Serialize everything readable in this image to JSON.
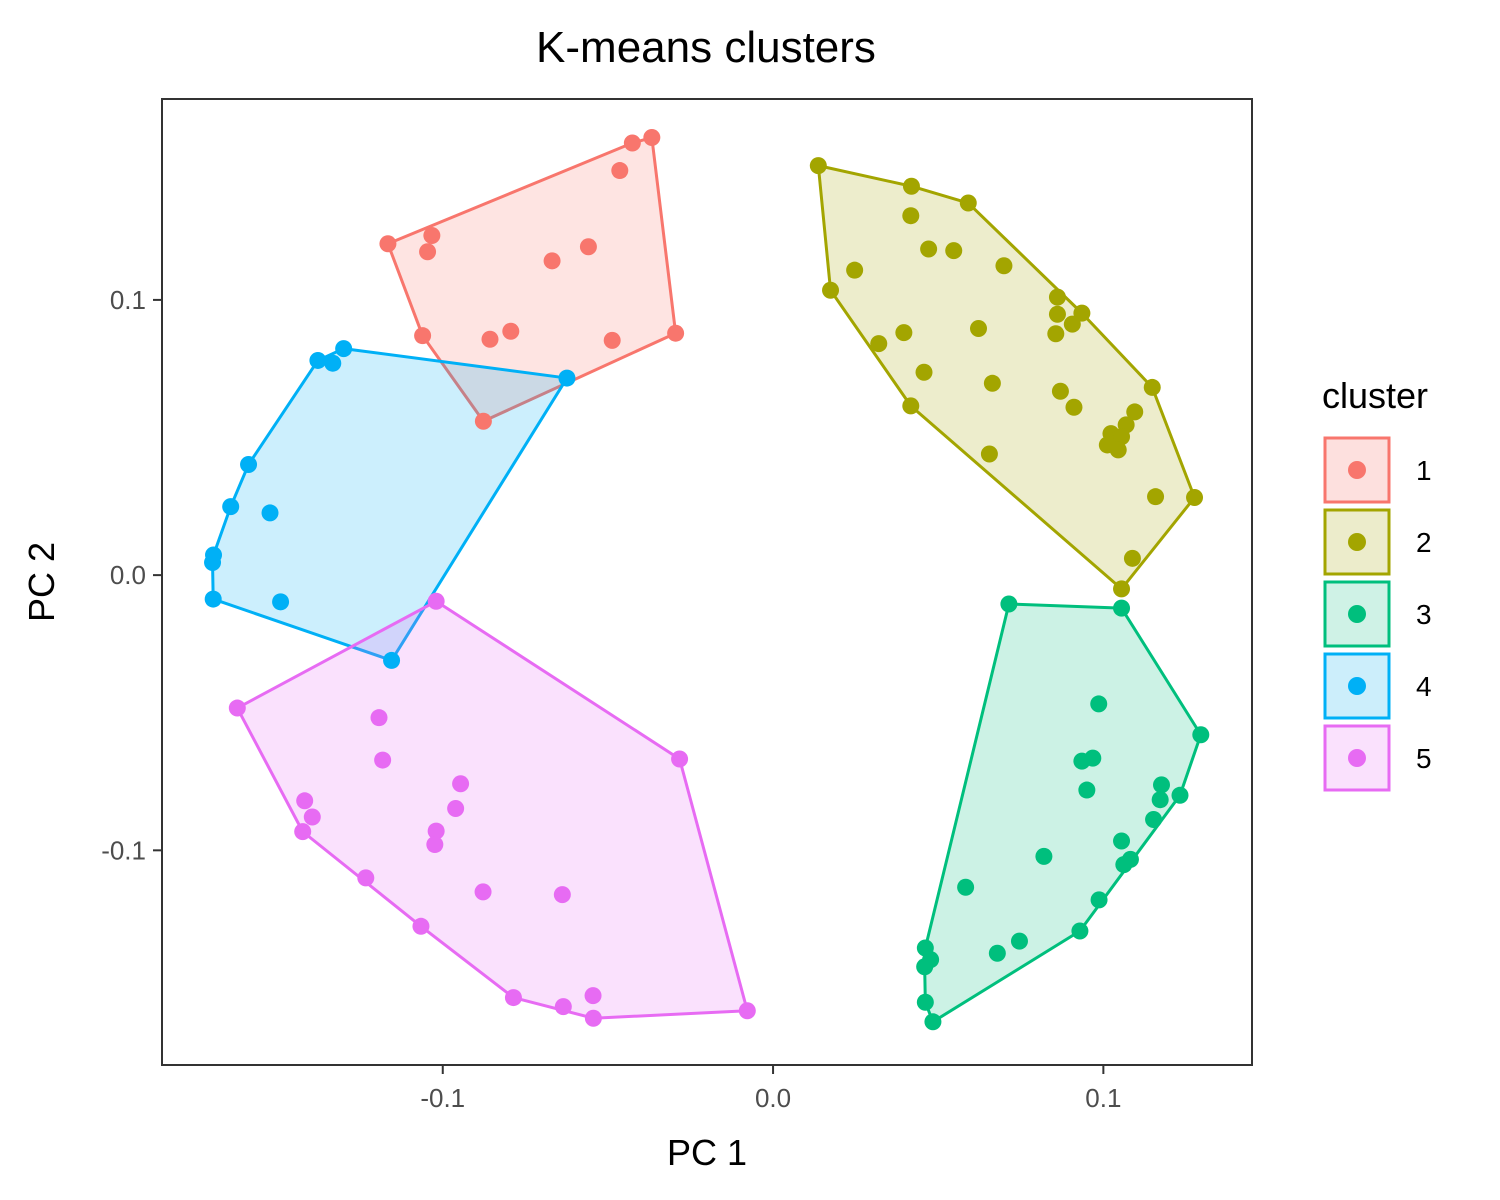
{
  "chart_data": {
    "type": "scatter",
    "title": "K-means clusters",
    "xlabel": "PC 1",
    "ylabel": "PC 2",
    "xlim": [
      -0.185,
      0.145
    ],
    "ylim": [
      -0.178,
      0.173
    ],
    "xticks": [
      -0.1,
      0.0,
      0.1
    ],
    "yticks": [
      -0.1,
      0.0,
      0.1
    ],
    "xtick_labels": [
      "-0.1",
      "0.0",
      "0.1"
    ],
    "ytick_labels": [
      "-0.1",
      "0.0",
      "0.1"
    ],
    "grid": false,
    "hulls": true,
    "legend": {
      "title": "cluster",
      "position": "right"
    },
    "series": [
      {
        "name": "1",
        "color": "#F8766D",
        "fill": "#FDE0DE",
        "points": [
          [
            -0.1166,
            0.1204
          ],
          [
            -0.1033,
            0.1234
          ],
          [
            -0.1046,
            0.1175
          ],
          [
            -0.0669,
            0.1142
          ],
          [
            -0.0559,
            0.1193
          ],
          [
            -0.0464,
            0.147
          ],
          [
            -0.0426,
            0.157
          ],
          [
            -0.0367,
            0.159
          ],
          [
            -0.1061,
            0.087
          ],
          [
            -0.0857,
            0.0857
          ],
          [
            -0.0794,
            0.0886
          ],
          [
            -0.0487,
            0.0853
          ],
          [
            -0.0295,
            0.0879
          ],
          [
            -0.0877,
            0.0559
          ]
        ]
      },
      {
        "name": "2",
        "color": "#A3A500",
        "fill": "#ECECCB",
        "points": [
          [
            0.0137,
            0.1488
          ],
          [
            0.0419,
            0.1413
          ],
          [
            0.0417,
            0.1306
          ],
          [
            0.0591,
            0.1352
          ],
          [
            0.0471,
            0.1185
          ],
          [
            0.0547,
            0.1179
          ],
          [
            0.0247,
            0.1108
          ],
          [
            0.0699,
            0.1124
          ],
          [
            0.0174,
            0.1035
          ],
          [
            0.0861,
            0.101
          ],
          [
            0.0935,
            0.0952
          ],
          [
            0.0861,
            0.0948
          ],
          [
            0.0906,
            0.0912
          ],
          [
            0.0856,
            0.0877
          ],
          [
            0.0622,
            0.0896
          ],
          [
            0.0396,
            0.0881
          ],
          [
            0.032,
            0.0841
          ],
          [
            0.0457,
            0.0737
          ],
          [
            0.0664,
            0.0697
          ],
          [
            0.1148,
            0.0682
          ],
          [
            0.087,
            0.0668
          ],
          [
            0.1095,
            0.0593
          ],
          [
            0.0911,
            0.061
          ],
          [
            0.0417,
            0.0615
          ],
          [
            0.1069,
            0.0546
          ],
          [
            0.1023,
            0.0514
          ],
          [
            0.104,
            0.0491
          ],
          [
            0.1055,
            0.0503
          ],
          [
            0.1012,
            0.0473
          ],
          [
            0.1045,
            0.0455
          ],
          [
            0.0655,
            0.044
          ],
          [
            0.1276,
            0.0282
          ],
          [
            0.1158,
            0.0285
          ],
          [
            0.1088,
            0.0061
          ],
          [
            0.1055,
            -0.005
          ]
        ]
      },
      {
        "name": "3",
        "color": "#00BF7D",
        "fill": "#CFF2E6",
        "points": [
          [
            0.0714,
            -0.0105
          ],
          [
            0.1055,
            -0.012
          ],
          [
            0.0986,
            -0.0468
          ],
          [
            0.1295,
            -0.058
          ],
          [
            0.0968,
            -0.0665
          ],
          [
            0.0935,
            -0.0676
          ],
          [
            0.095,
            -0.0781
          ],
          [
            0.1176,
            -0.0762
          ],
          [
            0.1172,
            -0.0816
          ],
          [
            0.1232,
            -0.08
          ],
          [
            0.1152,
            -0.0888
          ],
          [
            0.1055,
            -0.0966
          ],
          [
            0.1082,
            -0.1033
          ],
          [
            0.1062,
            -0.1052
          ],
          [
            0.082,
            -0.1022
          ],
          [
            0.0583,
            -0.1134
          ],
          [
            0.0987,
            -0.118
          ],
          [
            0.0929,
            -0.1293
          ],
          [
            0.0746,
            -0.133
          ],
          [
            0.0679,
            -0.1374
          ],
          [
            0.0461,
            -0.1355
          ],
          [
            0.0477,
            -0.1397
          ],
          [
            0.0459,
            -0.1423
          ],
          [
            0.0461,
            -0.1552
          ],
          [
            0.0484,
            -0.1623
          ]
        ]
      },
      {
        "name": "4",
        "color": "#00B0F6",
        "fill": "#CCEEFB",
        "points": [
          [
            -0.13,
            0.0823
          ],
          [
            -0.1378,
            0.078
          ],
          [
            -0.1333,
            0.077
          ],
          [
            -0.0624,
            0.0716
          ],
          [
            -0.1588,
            0.0402
          ],
          [
            -0.1642,
            0.0249
          ],
          [
            -0.1523,
            0.0226
          ],
          [
            -0.1694,
            0.0073
          ],
          [
            -0.1697,
            0.0046
          ],
          [
            -0.1491,
            -0.0097
          ],
          [
            -0.1695,
            -0.0087
          ],
          [
            -0.1155,
            -0.031
          ]
        ]
      },
      {
        "name": "5",
        "color": "#E76BF3",
        "fill": "#FAE1FD",
        "points": [
          [
            -0.102,
            -0.0095
          ],
          [
            -0.1622,
            -0.0483
          ],
          [
            -0.1193,
            -0.0518
          ],
          [
            -0.1182,
            -0.0672
          ],
          [
            -0.0946,
            -0.0758
          ],
          [
            -0.1418,
            -0.082
          ],
          [
            -0.0961,
            -0.0848
          ],
          [
            -0.1395,
            -0.0879
          ],
          [
            -0.102,
            -0.093
          ],
          [
            -0.1424,
            -0.0932
          ],
          [
            -0.1024,
            -0.0979
          ],
          [
            -0.0283,
            -0.0668
          ],
          [
            -0.1233,
            -0.11
          ],
          [
            -0.0878,
            -0.1151
          ],
          [
            -0.0638,
            -0.1161
          ],
          [
            -0.1066,
            -0.1276
          ],
          [
            -0.0786,
            -0.1535
          ],
          [
            -0.0545,
            -0.1528
          ],
          [
            -0.0635,
            -0.1568
          ],
          [
            -0.0544,
            -0.161
          ],
          [
            -0.0078,
            -0.1583
          ]
        ]
      }
    ]
  }
}
